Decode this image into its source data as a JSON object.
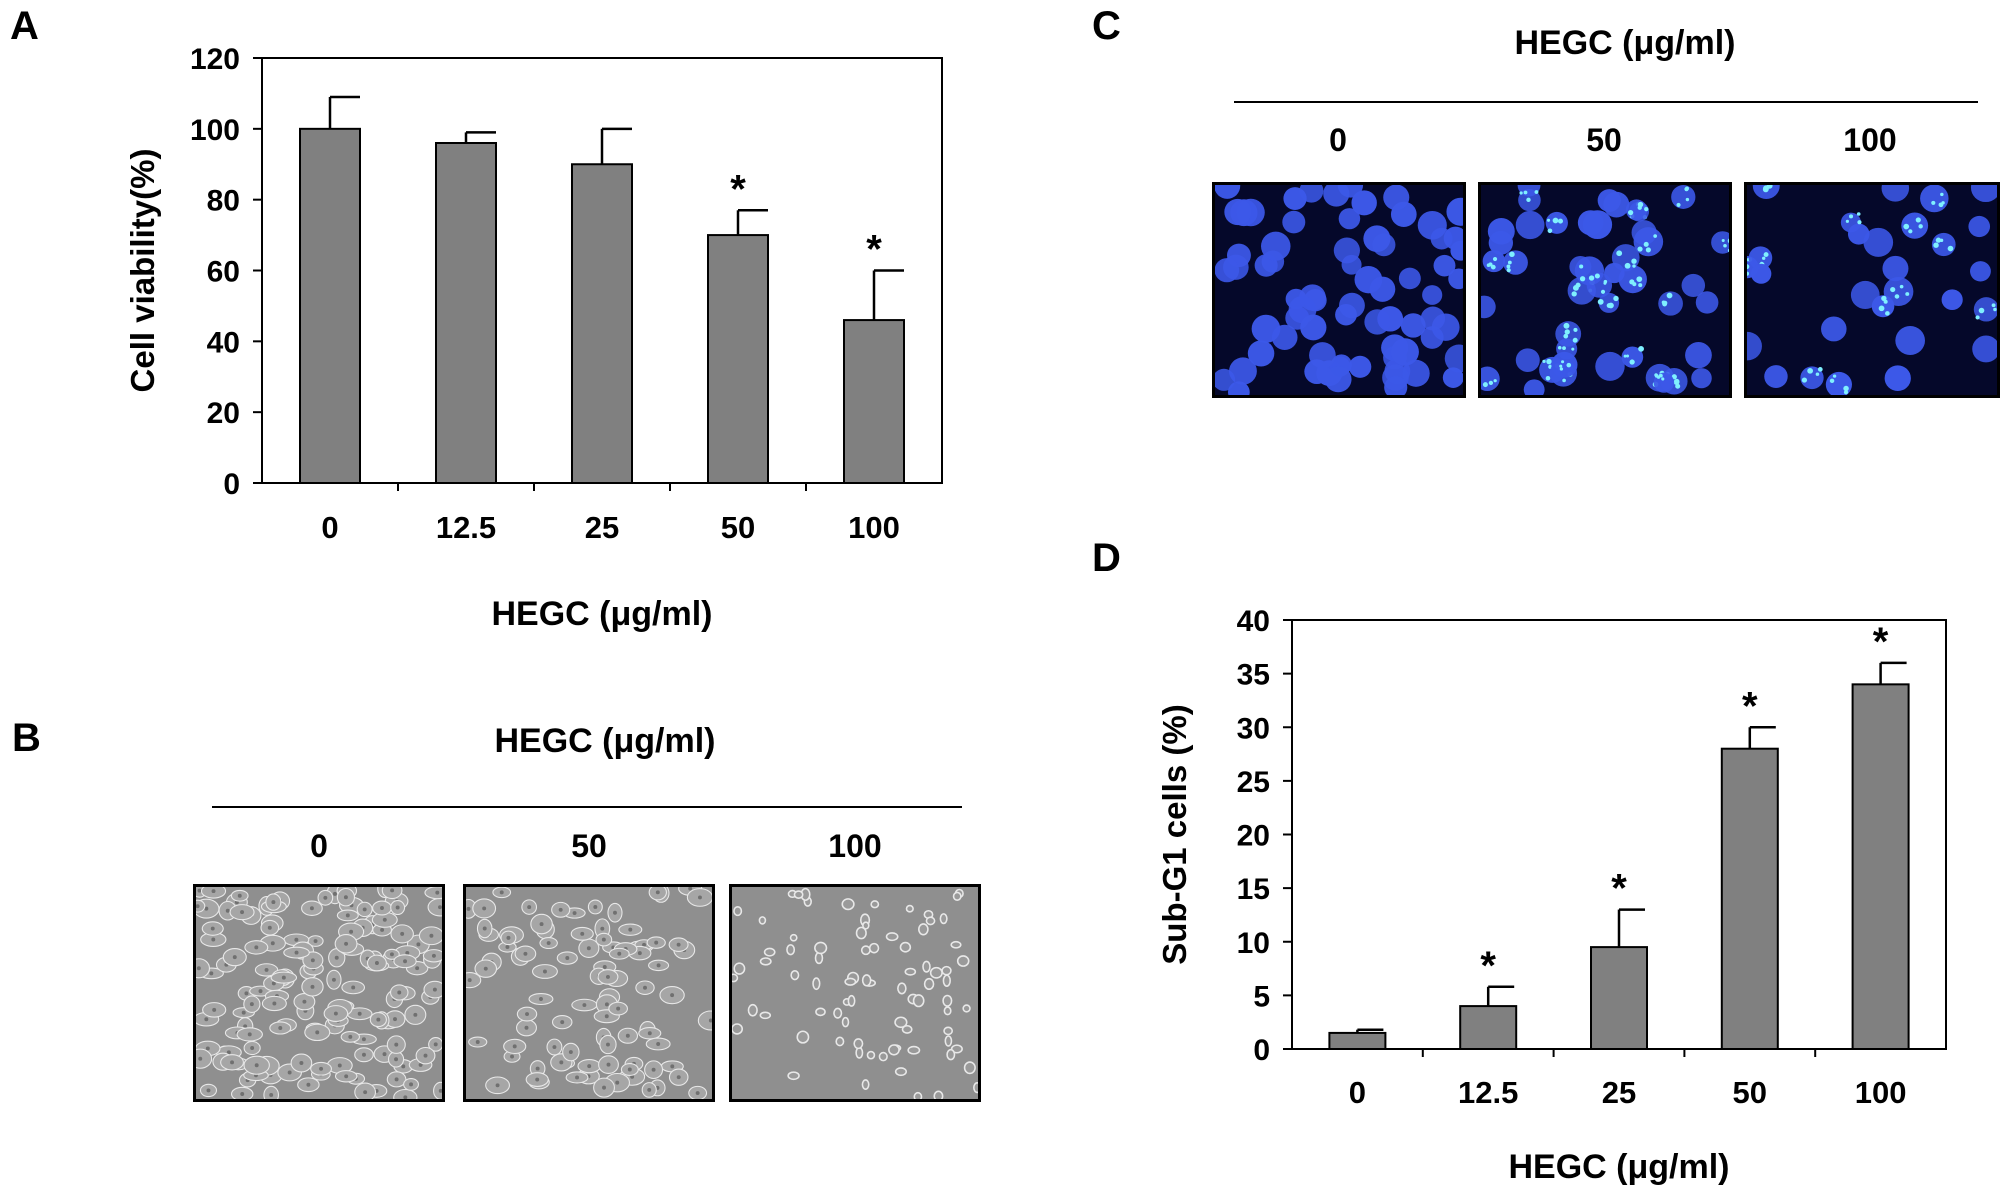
{
  "panels": {
    "a": {
      "letter": "A"
    },
    "b": {
      "letter": "B",
      "header": "HEGC (μg/ml)",
      "doses": [
        "0",
        "50",
        "100"
      ]
    },
    "c": {
      "letter": "C",
      "header": "HEGC (μg/ml)",
      "doses": [
        "0",
        "50",
        "100"
      ]
    },
    "d": {
      "letter": "D"
    }
  },
  "colors": {
    "bar": "#808080",
    "phase_bg": "#8f8f8f",
    "fluor_bg": "#05082a",
    "nucleus": "#3c58e8"
  },
  "chart_data": [
    {
      "type": "bar",
      "panel": "A",
      "categories": [
        "0",
        "12.5",
        "25",
        "50",
        "100"
      ],
      "values": [
        100,
        96,
        90,
        70,
        46
      ],
      "errors": [
        9,
        3,
        10,
        7,
        14
      ],
      "significance": [
        "",
        "",
        "",
        "*",
        "*"
      ],
      "xlabel": "HEGC (μg/ml)",
      "ylabel": "Cell viability(%)",
      "ylim": [
        0,
        120
      ],
      "yticks": [
        "0",
        "20",
        "40",
        "60",
        "80",
        "100",
        "120"
      ]
    },
    {
      "type": "bar",
      "panel": "D",
      "categories": [
        "0",
        "12.5",
        "25",
        "50",
        "100"
      ],
      "values": [
        1.5,
        4,
        9.5,
        28,
        34
      ],
      "errors": [
        0.3,
        1.8,
        3.5,
        2,
        2
      ],
      "significance": [
        "",
        "*",
        "*",
        "*",
        "*"
      ],
      "xlabel": "HEGC (μg/ml)",
      "ylabel": "Sub-G1 cells (%)",
      "ylim": [
        0,
        40
      ],
      "yticks": [
        "0",
        "5",
        "10",
        "15",
        "20",
        "25",
        "30",
        "35",
        "40"
      ]
    }
  ]
}
